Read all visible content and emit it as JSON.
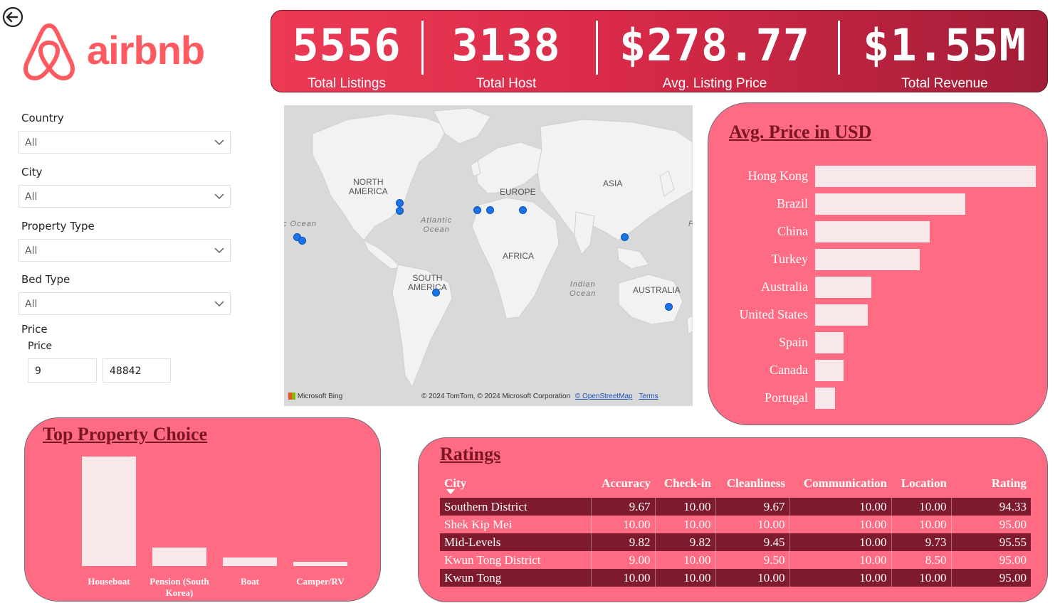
{
  "brand": {
    "name": "airbnb",
    "color": "#ff5a5f"
  },
  "kpis": [
    {
      "value": "5556",
      "label": "Total Listings"
    },
    {
      "value": "3138",
      "label": "Total Host"
    },
    {
      "value": "$278.77",
      "label": "Avg. Listing Price"
    },
    {
      "value": "$1.55M",
      "label": "Total Revenue"
    }
  ],
  "filters": {
    "country": {
      "label": "Country",
      "value": "All"
    },
    "city": {
      "label": "City",
      "value": "All"
    },
    "property_type": {
      "label": "Property Type",
      "value": "All"
    },
    "bed_type": {
      "label": "Bed Type",
      "value": "All"
    },
    "price": {
      "label": "Price",
      "sublabel": "Price",
      "min": "9",
      "max": "48842"
    }
  },
  "map": {
    "labels": {
      "north_america": "NORTH\nAMERICA",
      "south_america": "SOUTH\nAMERICA",
      "europe": "EUROPE",
      "asia": "ASIA",
      "africa": "AFRICA",
      "australia": "AUSTRALIA",
      "atlantic": "Atlantic\nOcean",
      "indian": "Indian\nOcean",
      "pacific": "c Ocean",
      "right_edge": "F"
    },
    "attribution": "© 2024 TomTom, © 2024 Microsoft Corporation",
    "osm_link": "© OpenStreetMap",
    "terms_link": "Terms",
    "bing": "Microsoft Bing",
    "dot_color": "#1a73e8"
  },
  "avg_price_chart": {
    "title": "Avg. Price in USD",
    "chart_data": {
      "type": "bar",
      "orientation": "horizontal",
      "categories": [
        "Hong Kong",
        "Brazil",
        "China",
        "Turkey",
        "Australia",
        "United States",
        "Spain",
        "Canada",
        "Portugal"
      ],
      "values": [
        100,
        68,
        52,
        47.5,
        25.5,
        24,
        13,
        13,
        9
      ],
      "bar_color": "#f8e8ea"
    }
  },
  "top_property_chart": {
    "title": "Top Property Choice",
    "chart_data": {
      "type": "bar",
      "categories": [
        "Houseboat",
        "Pension (South Korea)",
        "Boat",
        "Camper/RV"
      ],
      "values": [
        100,
        17,
        8,
        4
      ],
      "bar_color": "#f8e8ea"
    }
  },
  "ratings": {
    "title": "Ratings",
    "columns": [
      "City",
      "Accuracy",
      "Check-in",
      "Cleanliness",
      "Communication",
      "Location",
      "Rating"
    ],
    "rows": [
      [
        "Southern District",
        "9.67",
        "10.00",
        "9.67",
        "10.00",
        "10.00",
        "94.33"
      ],
      [
        "Shek Kip Mei",
        "10.00",
        "10.00",
        "10.00",
        "10.00",
        "10.00",
        "95.00"
      ],
      [
        "Mid-Levels",
        "9.82",
        "9.82",
        "9.45",
        "10.00",
        "9.73",
        "95.55"
      ],
      [
        "Kwun Tong District",
        "9.00",
        "10.00",
        "9.50",
        "10.00",
        "8.50",
        "95.00"
      ],
      [
        "Kwun Tong",
        "10.00",
        "10.00",
        "10.00",
        "10.00",
        "10.00",
        "95.00"
      ]
    ]
  }
}
